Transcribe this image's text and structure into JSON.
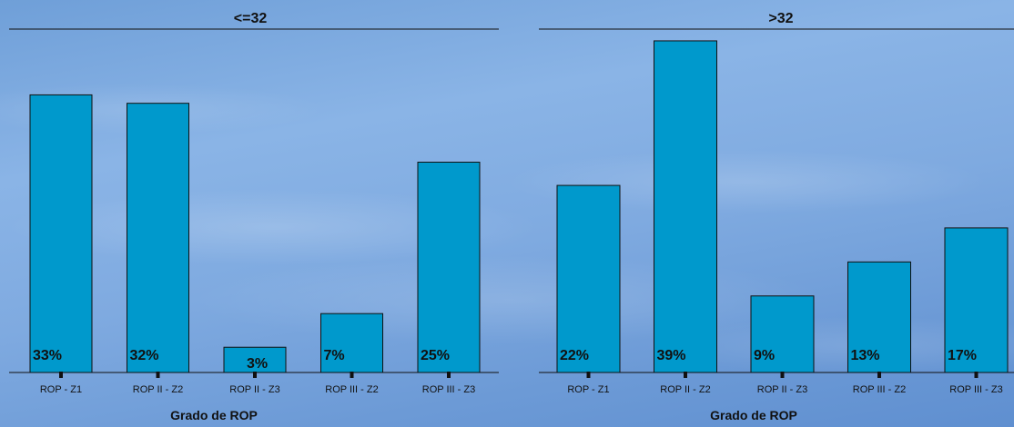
{
  "colors": {
    "bar": "#0099cc",
    "bar_stroke": "#111111",
    "axis": "#111111"
  },
  "chart_data": [
    {
      "type": "bar",
      "title": "<=32",
      "xlabel": "Grado de ROP",
      "ylabel": "",
      "categories": [
        "ROP - Z1",
        "ROP II - Z2",
        "ROP II - Z3",
        "ROP III - Z2",
        "ROP III - Z3"
      ],
      "values": [
        33,
        32,
        3,
        7,
        25
      ],
      "data_labels": [
        "33%",
        "32%",
        "3%",
        "7%",
        "25%"
      ],
      "ylim": [
        0,
        40
      ],
      "grid": false
    },
    {
      "type": "bar",
      "title": ">32",
      "xlabel": "Grado de ROP",
      "ylabel": "",
      "categories": [
        "ROP - Z1",
        "ROP II - Z2",
        "ROP II - Z3",
        "ROP III - Z2",
        "ROP III - Z3"
      ],
      "values": [
        22,
        39,
        9,
        13,
        17
      ],
      "data_labels": [
        "22%",
        "39%",
        "9%",
        "13%",
        "17%"
      ],
      "ylim": [
        0,
        40
      ],
      "grid": false
    }
  ]
}
